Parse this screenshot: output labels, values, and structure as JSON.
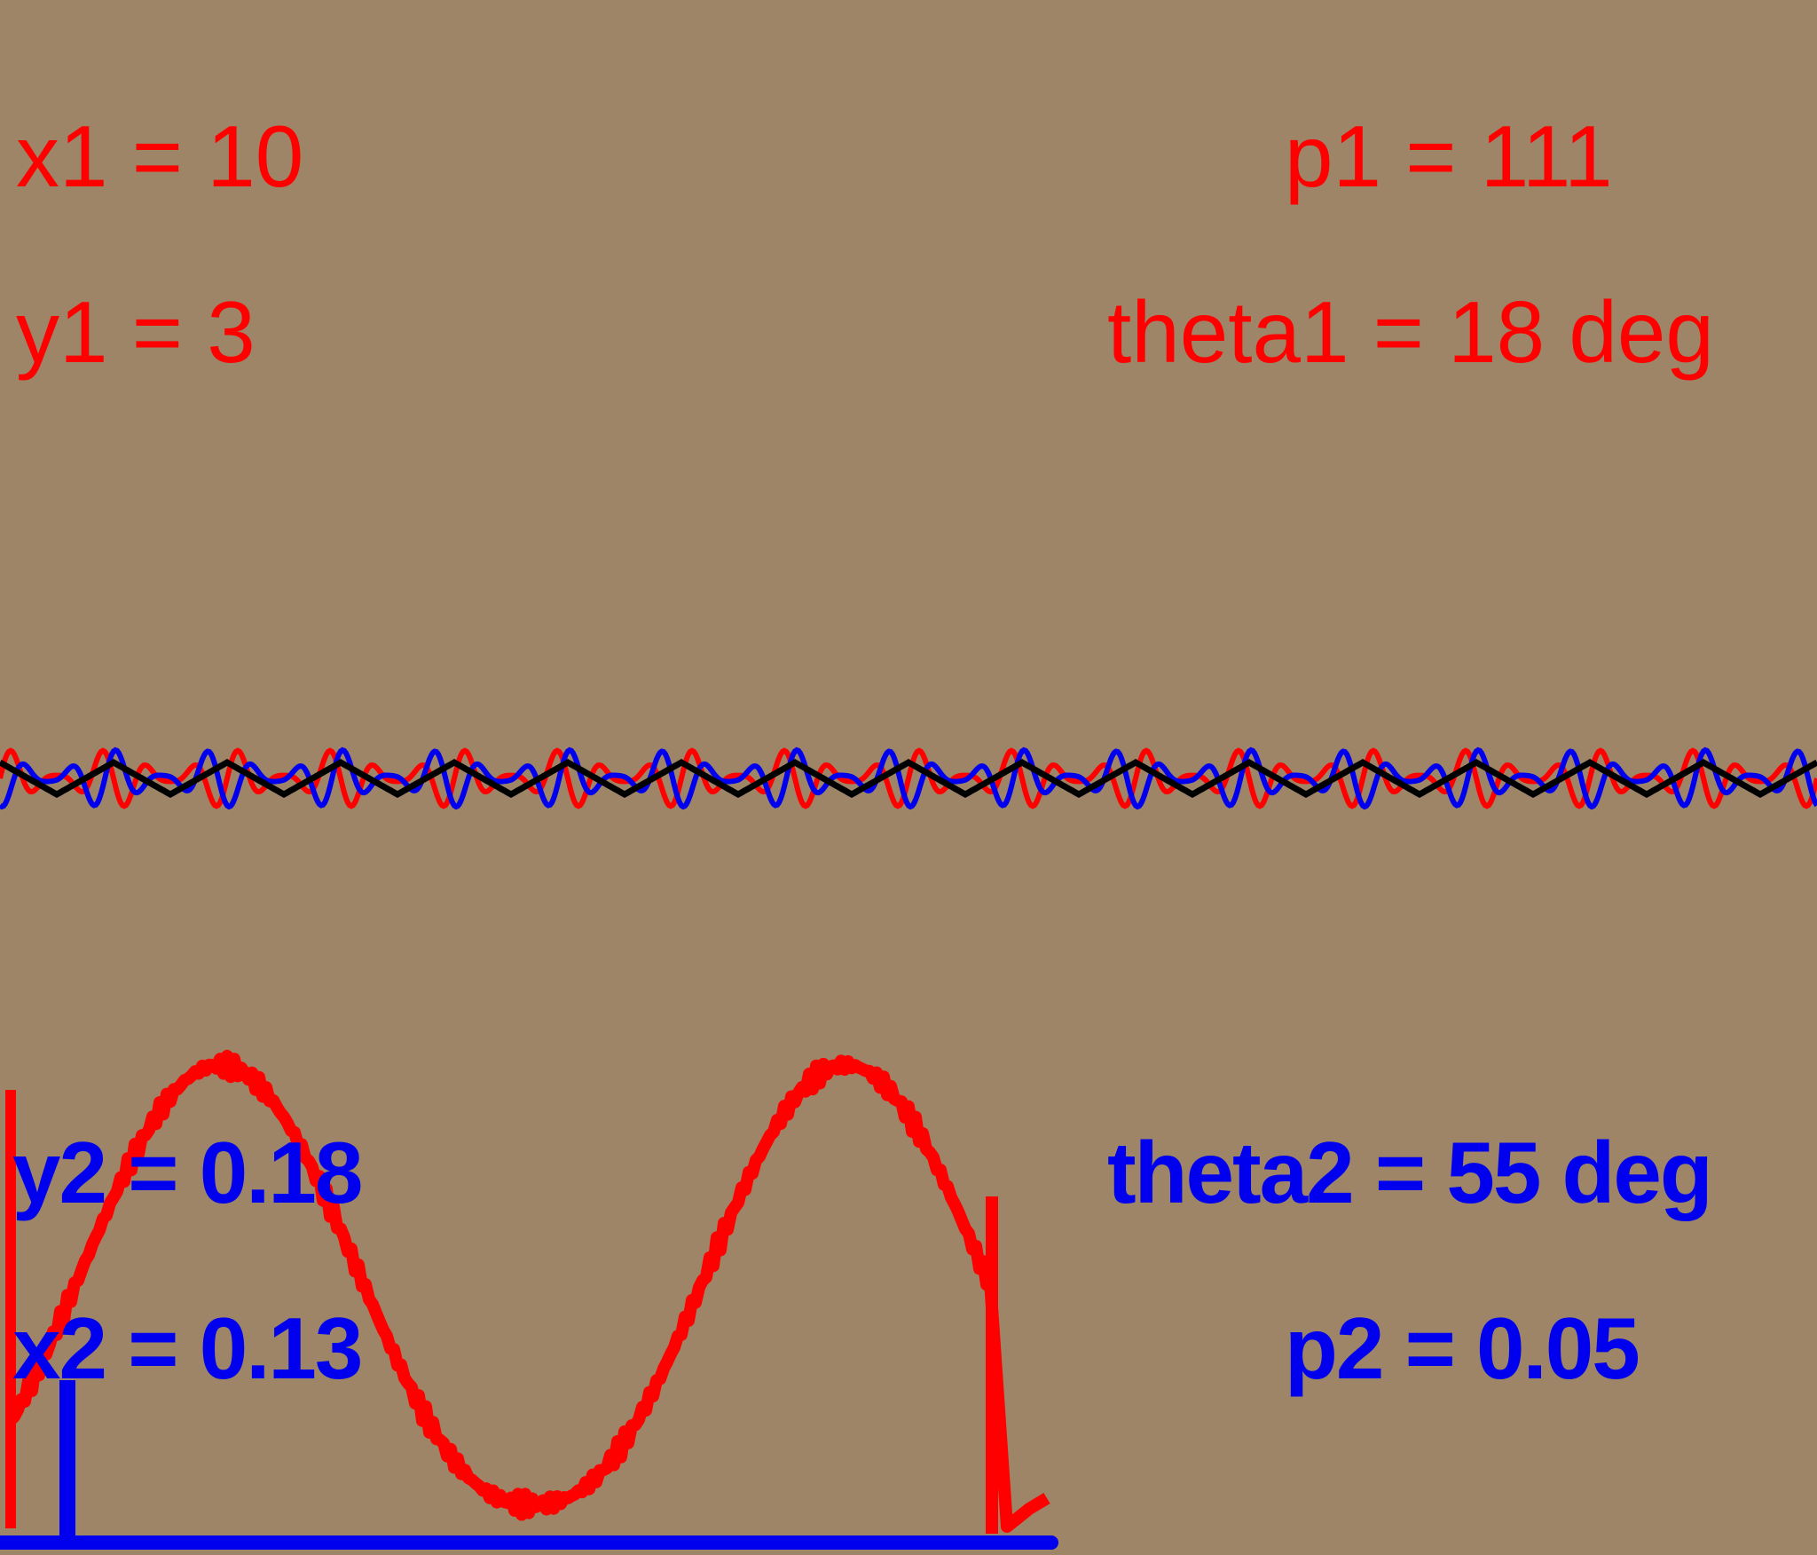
{
  "readouts": {
    "x1": "x1 = 10",
    "y1": "y1 = 3",
    "p1": "p1 = 111",
    "theta1": "theta1 = 18 deg",
    "y2": "y2 = 0.18",
    "x2": "x2 = 0.13",
    "theta2": "theta2 = 55 deg",
    "p2": "p2 = 0.05"
  },
  "colors": {
    "background": "#9e8567",
    "wave1": "#ff0000",
    "wave2": "#0000ee",
    "superposition": "#000000",
    "distribution_curve": "#ff0000",
    "baseline": "#0000ee"
  }
}
